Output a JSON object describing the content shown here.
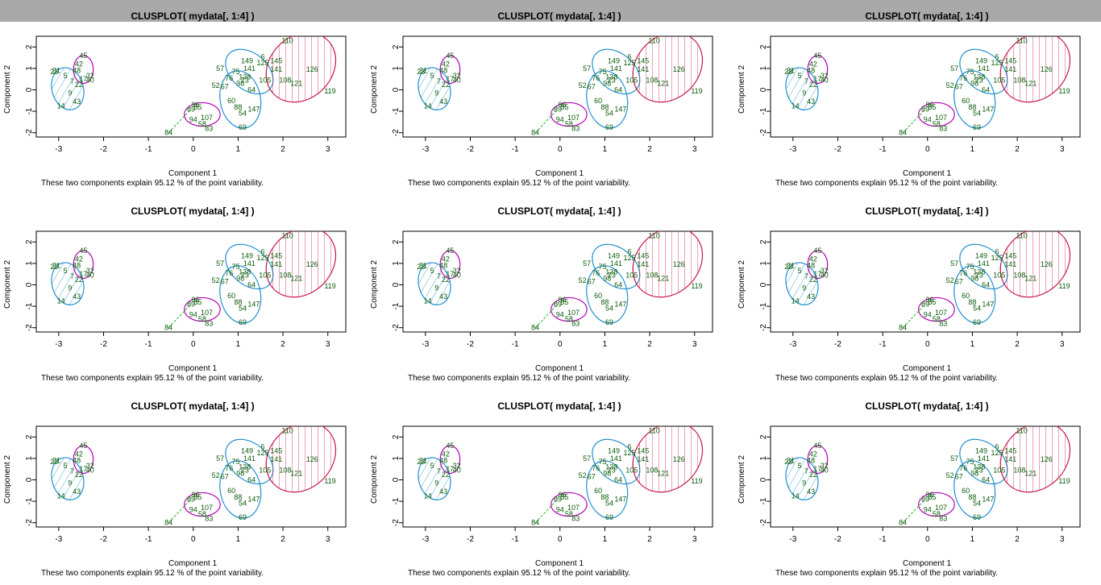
{
  "window": {
    "title": ""
  },
  "colors": {
    "background": "#ffffff",
    "title_bar": "#a9a9a9",
    "cluster_1": "#1f8fd0",
    "cluster_2": "#c8174e",
    "cluster_3": "#b400b4",
    "cluster_4": "#1a8a1a",
    "labels": "#0a5a0a"
  },
  "chart_data": {
    "type": "scatter",
    "grid_rows": 3,
    "grid_cols": 3,
    "title": "CLUSPLOT( mydata[, 1:4] )",
    "xlabel": "Component 1",
    "ylabel": "Component 2",
    "note": "These two components explain 95.12 % of the point variability.",
    "xticks": [
      "-3",
      "-2",
      "-1",
      "0",
      "1",
      "2",
      "3"
    ],
    "yticks": [
      "-2",
      "-1",
      "0",
      "1",
      "2"
    ],
    "xlim": [
      -3.5,
      3.4
    ],
    "ylim": [
      -2.2,
      2.5
    ],
    "points": [
      {
        "label": "23",
        "x": -3.1,
        "y": 0.85
      },
      {
        "label": "31",
        "x": -3.05,
        "y": 0.9
      },
      {
        "label": "5",
        "x": -2.85,
        "y": 0.65
      },
      {
        "label": "7",
        "x": -2.7,
        "y": 0.4
      },
      {
        "label": "14",
        "x": -2.95,
        "y": -0.75
      },
      {
        "label": "43",
        "x": -2.6,
        "y": -0.55
      },
      {
        "label": "9",
        "x": -2.75,
        "y": -0.15
      },
      {
        "label": "42",
        "x": -2.55,
        "y": 1.2
      },
      {
        "label": "45",
        "x": -2.45,
        "y": 1.6
      },
      {
        "label": "32",
        "x": -2.3,
        "y": 0.65
      },
      {
        "label": "48",
        "x": -2.6,
        "y": 0.9
      },
      {
        "label": "17",
        "x": -2.45,
        "y": 0.5
      },
      {
        "label": "40",
        "x": -2.3,
        "y": 0.45
      },
      {
        "label": "22",
        "x": -2.55,
        "y": 0.25
      },
      {
        "label": "84",
        "x": -0.55,
        "y": -2.0
      },
      {
        "label": "89",
        "x": -0.05,
        "y": -0.9
      },
      {
        "label": "96",
        "x": 0.05,
        "y": -0.7
      },
      {
        "label": "85",
        "x": 0.1,
        "y": -0.8
      },
      {
        "label": "107",
        "x": 0.3,
        "y": -1.3
      },
      {
        "label": "94",
        "x": 0.0,
        "y": -1.4
      },
      {
        "label": "83",
        "x": 0.35,
        "y": -1.8
      },
      {
        "label": "58",
        "x": 0.2,
        "y": -1.6
      },
      {
        "label": "57",
        "x": 0.6,
        "y": 1.0
      },
      {
        "label": "52",
        "x": 0.5,
        "y": 0.2
      },
      {
        "label": "60",
        "x": 0.85,
        "y": -0.5
      },
      {
        "label": "69",
        "x": 1.1,
        "y": -1.75
      },
      {
        "label": "88",
        "x": 1.0,
        "y": -0.8
      },
      {
        "label": "54",
        "x": 1.1,
        "y": -1.1
      },
      {
        "label": "147",
        "x": 1.35,
        "y": -0.9
      },
      {
        "label": "64",
        "x": 1.3,
        "y": 0.0
      },
      {
        "label": "73",
        "x": 1.15,
        "y": 0.45
      },
      {
        "label": "98",
        "x": 1.05,
        "y": 0.3
      },
      {
        "label": "75",
        "x": 0.95,
        "y": 0.85
      },
      {
        "label": "141",
        "x": 1.25,
        "y": 1.0
      },
      {
        "label": "149",
        "x": 1.2,
        "y": 1.35
      },
      {
        "label": "138",
        "x": 1.15,
        "y": 0.6
      },
      {
        "label": "105",
        "x": 1.6,
        "y": 0.45
      },
      {
        "label": "125",
        "x": 1.55,
        "y": 1.25
      },
      {
        "label": "145",
        "x": 1.85,
        "y": 1.35
      },
      {
        "label": "141",
        "x": 1.85,
        "y": 0.95
      },
      {
        "label": "108",
        "x": 2.05,
        "y": 0.45
      },
      {
        "label": "121",
        "x": 2.3,
        "y": 0.3
      },
      {
        "label": "126",
        "x": 2.65,
        "y": 0.95
      },
      {
        "label": "119",
        "x": 3.05,
        "y": -0.05
      },
      {
        "label": "110",
        "x": 2.1,
        "y": 2.3
      },
      {
        "label": "6",
        "x": 1.55,
        "y": 1.55
      },
      {
        "label": "76",
        "x": 0.8,
        "y": 0.55
      },
      {
        "label": "67",
        "x": 0.7,
        "y": 0.15
      }
    ]
  }
}
